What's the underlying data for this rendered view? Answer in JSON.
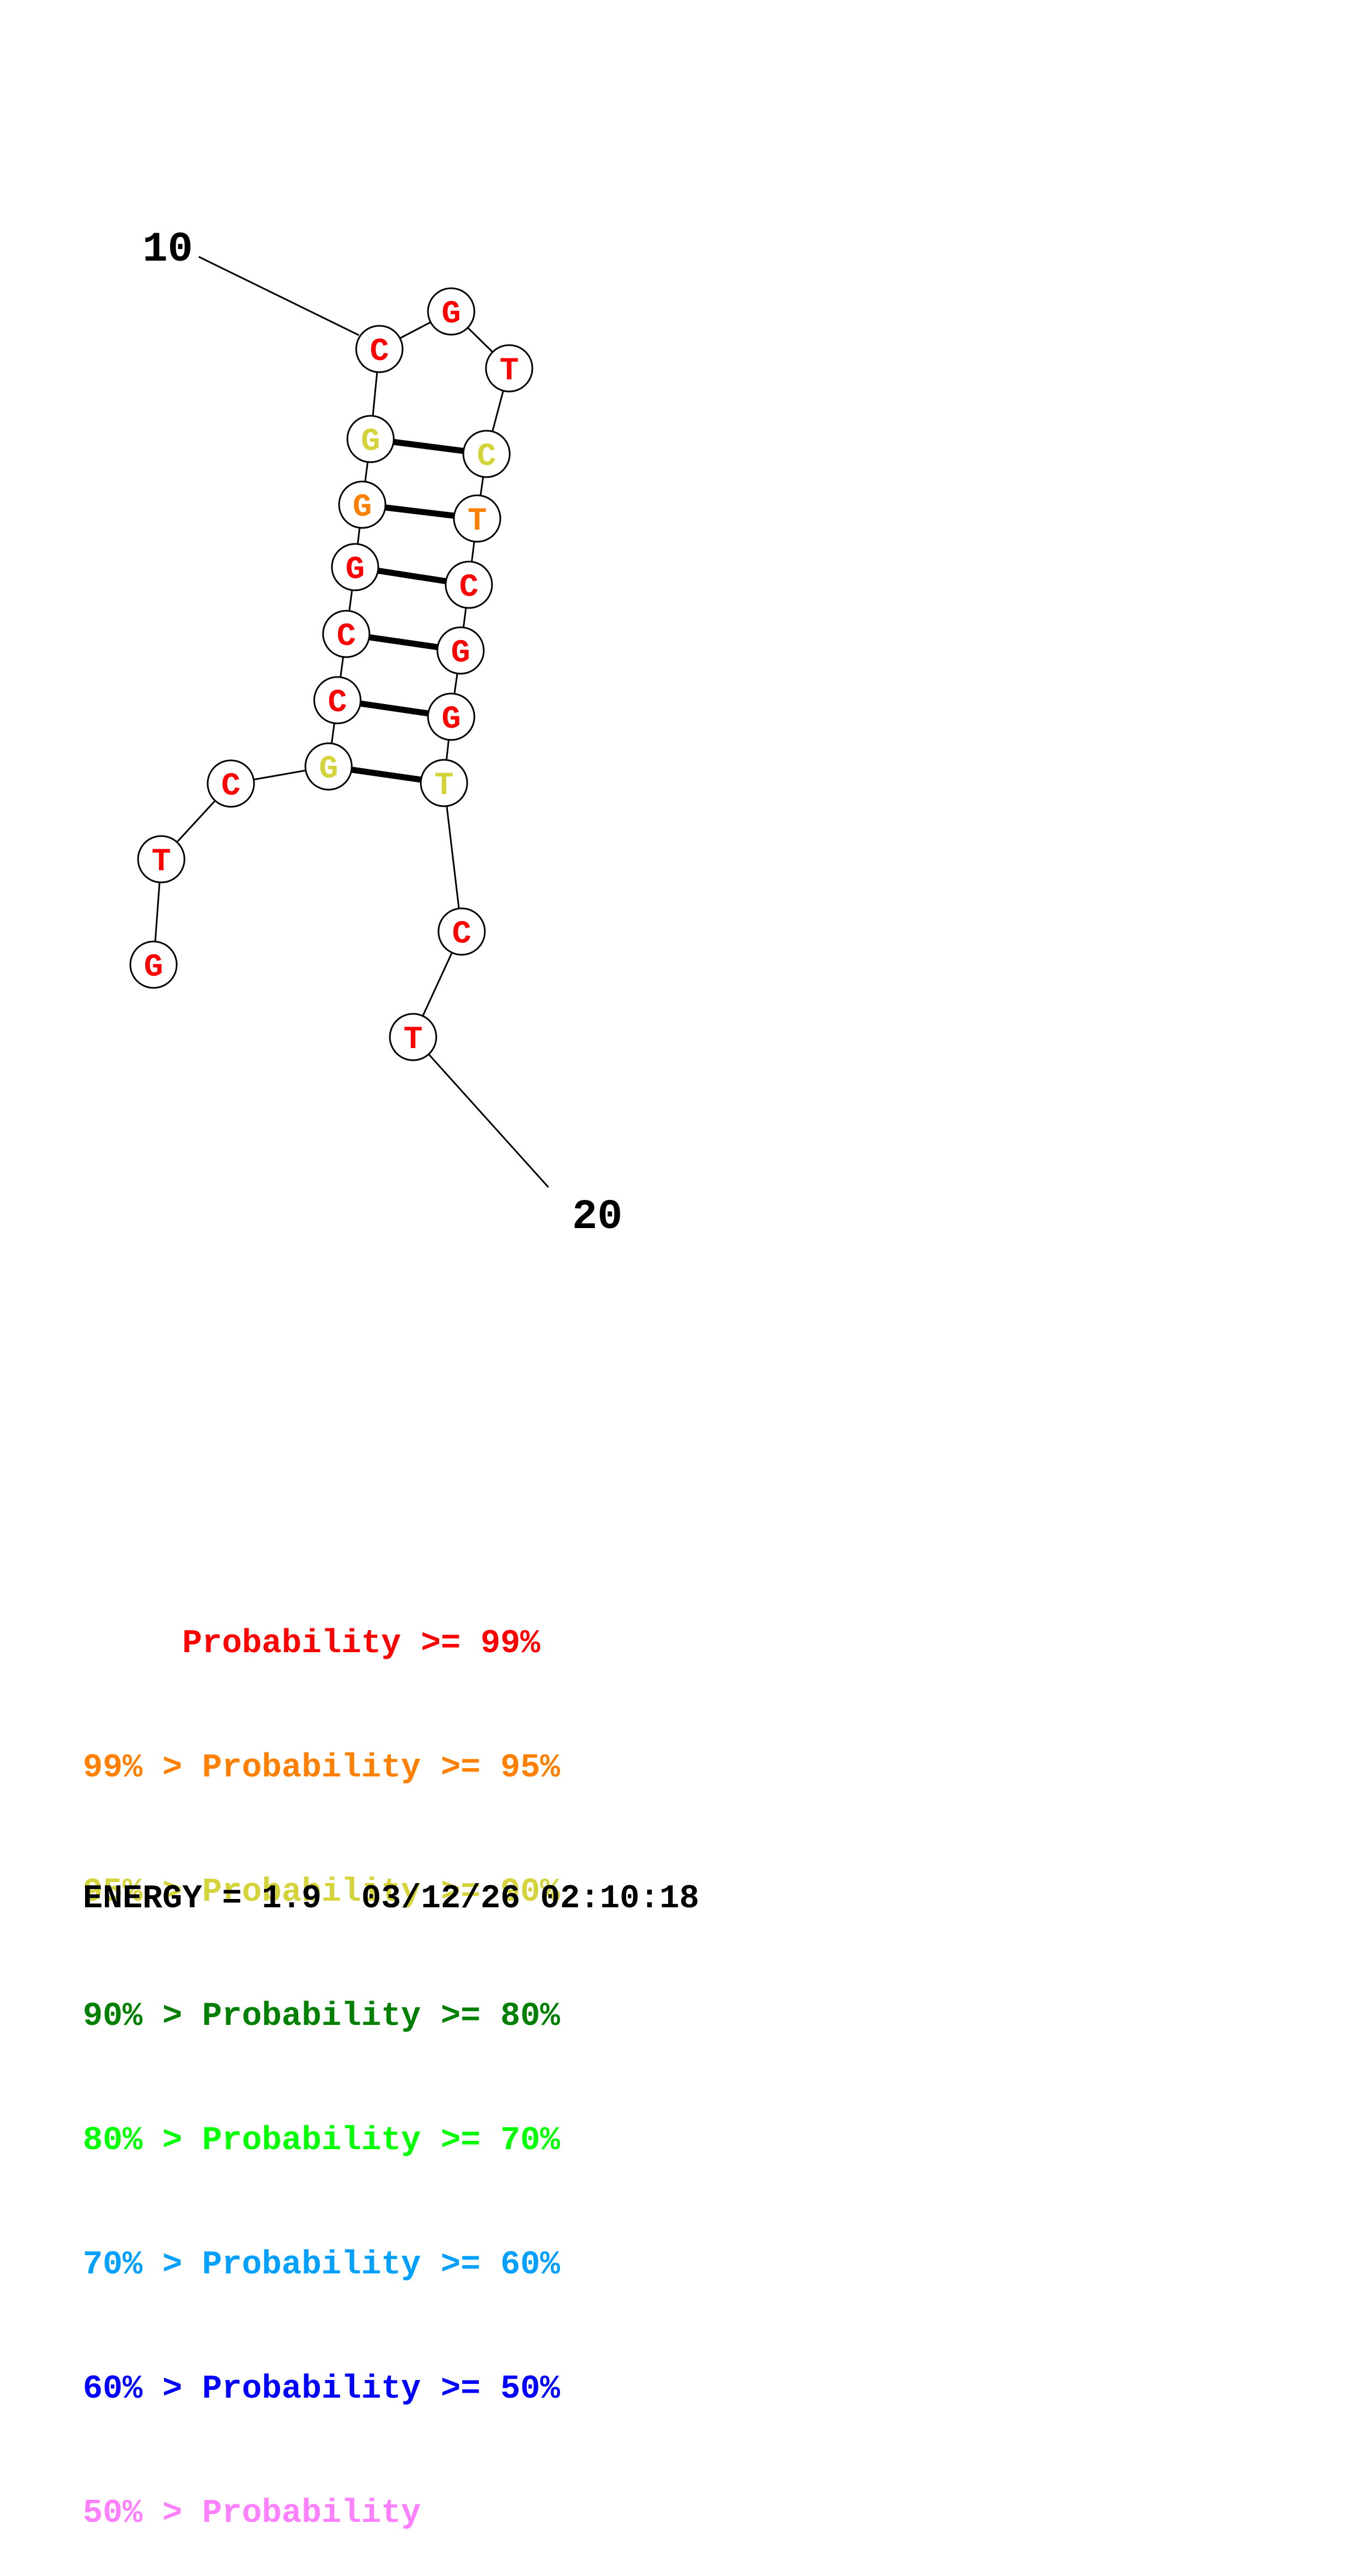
{
  "colors": {
    "p99": "#ff0000",
    "p95": "#ff8000",
    "p90": "#d4d43a",
    "p80": "#008000",
    "p70": "#00ff00",
    "p60": "#00a0ff",
    "p50": "#0000ff",
    "plt50": "#ff80ff"
  },
  "structure": {
    "nucleotides": [
      {
        "base": "G",
        "prob": "p99"
      },
      {
        "base": "T",
        "prob": "p99"
      },
      {
        "base": "C",
        "prob": "p99"
      },
      {
        "base": "G",
        "prob": "p90"
      },
      {
        "base": "C",
        "prob": "p99"
      },
      {
        "base": "C",
        "prob": "p99"
      },
      {
        "base": "G",
        "prob": "p99"
      },
      {
        "base": "G",
        "prob": "p95"
      },
      {
        "base": "G",
        "prob": "p90"
      },
      {
        "base": "C",
        "prob": "p99"
      },
      {
        "base": "G",
        "prob": "p99"
      },
      {
        "base": "T",
        "prob": "p99"
      },
      {
        "base": "C",
        "prob": "p90"
      },
      {
        "base": "T",
        "prob": "p95"
      },
      {
        "base": "C",
        "prob": "p99"
      },
      {
        "base": "G",
        "prob": "p99"
      },
      {
        "base": "G",
        "prob": "p99"
      },
      {
        "base": "T",
        "prob": "p90"
      },
      {
        "base": "C",
        "prob": "p99"
      },
      {
        "base": "T",
        "prob": "p99"
      }
    ],
    "pairs": [
      [
        4,
        18
      ],
      [
        5,
        17
      ],
      [
        6,
        16
      ],
      [
        7,
        15
      ],
      [
        8,
        14
      ],
      [
        9,
        13
      ]
    ],
    "index_labels": [
      {
        "text": "10",
        "nucleotide": 10
      },
      {
        "text": "20",
        "nucleotide": 20
      }
    ]
  },
  "legend": [
    {
      "text": "     Probability >= 99%",
      "color": "p99"
    },
    {
      "text": "99% > Probability >= 95%",
      "color": "p95"
    },
    {
      "text": "95% > Probability >= 90%",
      "color": "p90"
    },
    {
      "text": "90% > Probability >= 80%",
      "color": "p80"
    },
    {
      "text": "80% > Probability >= 70%",
      "color": "p70"
    },
    {
      "text": "70% > Probability >= 60%",
      "color": "p60"
    },
    {
      "text": "60% > Probability >= 50%",
      "color": "p50"
    },
    {
      "text": "50% > Probability",
      "color": "plt50"
    }
  ],
  "energy_line": "ENERGY = 1.9  03/12/26 02:10:18"
}
